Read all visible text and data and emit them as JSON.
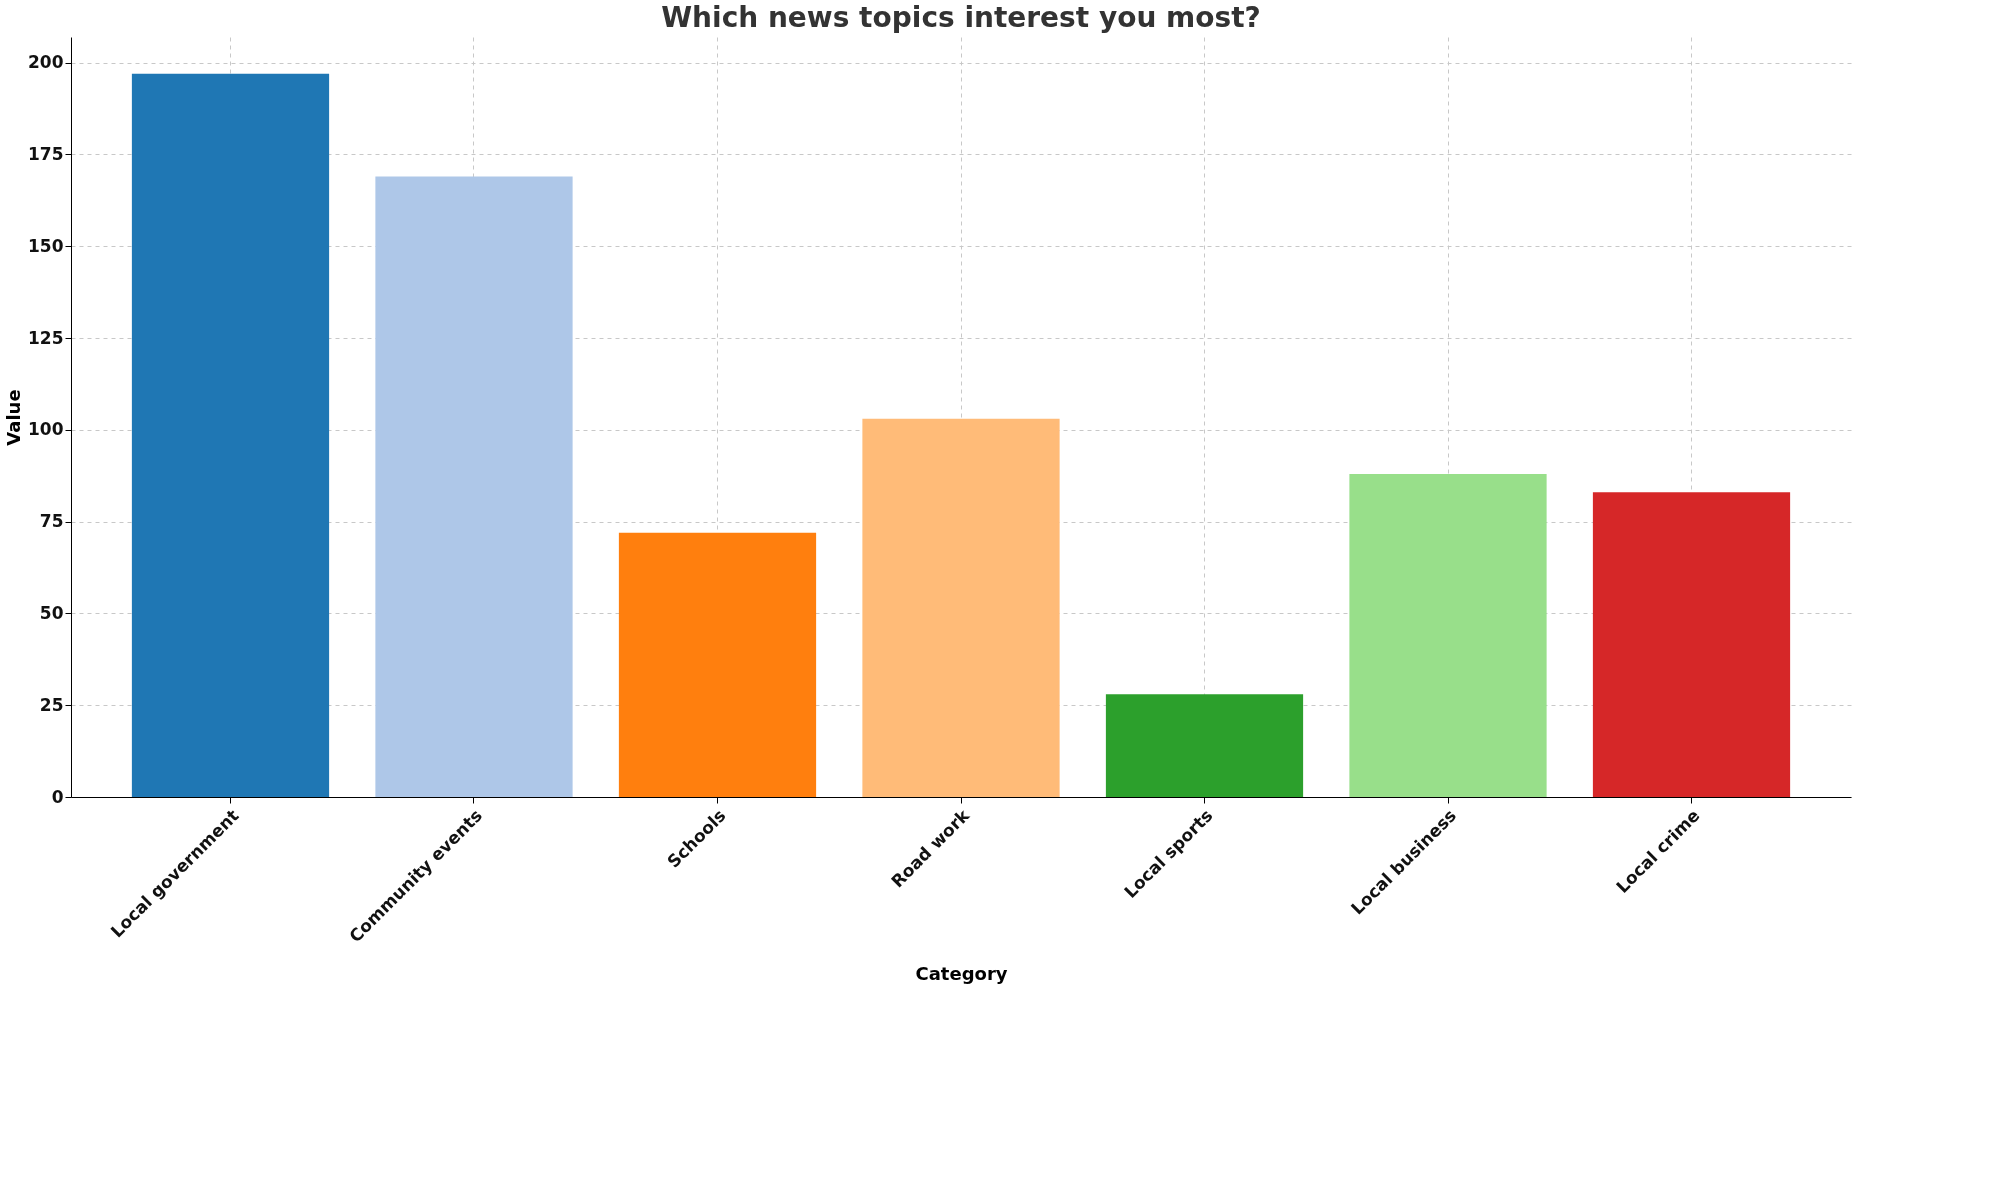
{
  "chart_data": {
    "type": "bar",
    "title": "Which news topics interest you most?",
    "xlabel": "Category",
    "ylabel": "Value",
    "categories": [
      "Local government",
      "Community events",
      "Schools",
      "Road work",
      "Local sports",
      "Local business",
      "Local crime"
    ],
    "values": [
      197,
      169,
      72,
      103,
      28,
      88,
      83
    ],
    "colors": [
      "#1f77b4",
      "#aec7e8",
      "#ff7f0e",
      "#ffbb78",
      "#2ca02c",
      "#98df8a",
      "#d62728"
    ],
    "ylim": [
      0,
      207
    ],
    "yticks": [
      0,
      25,
      50,
      75,
      100,
      125,
      150,
      175,
      200
    ],
    "grid": true
  }
}
